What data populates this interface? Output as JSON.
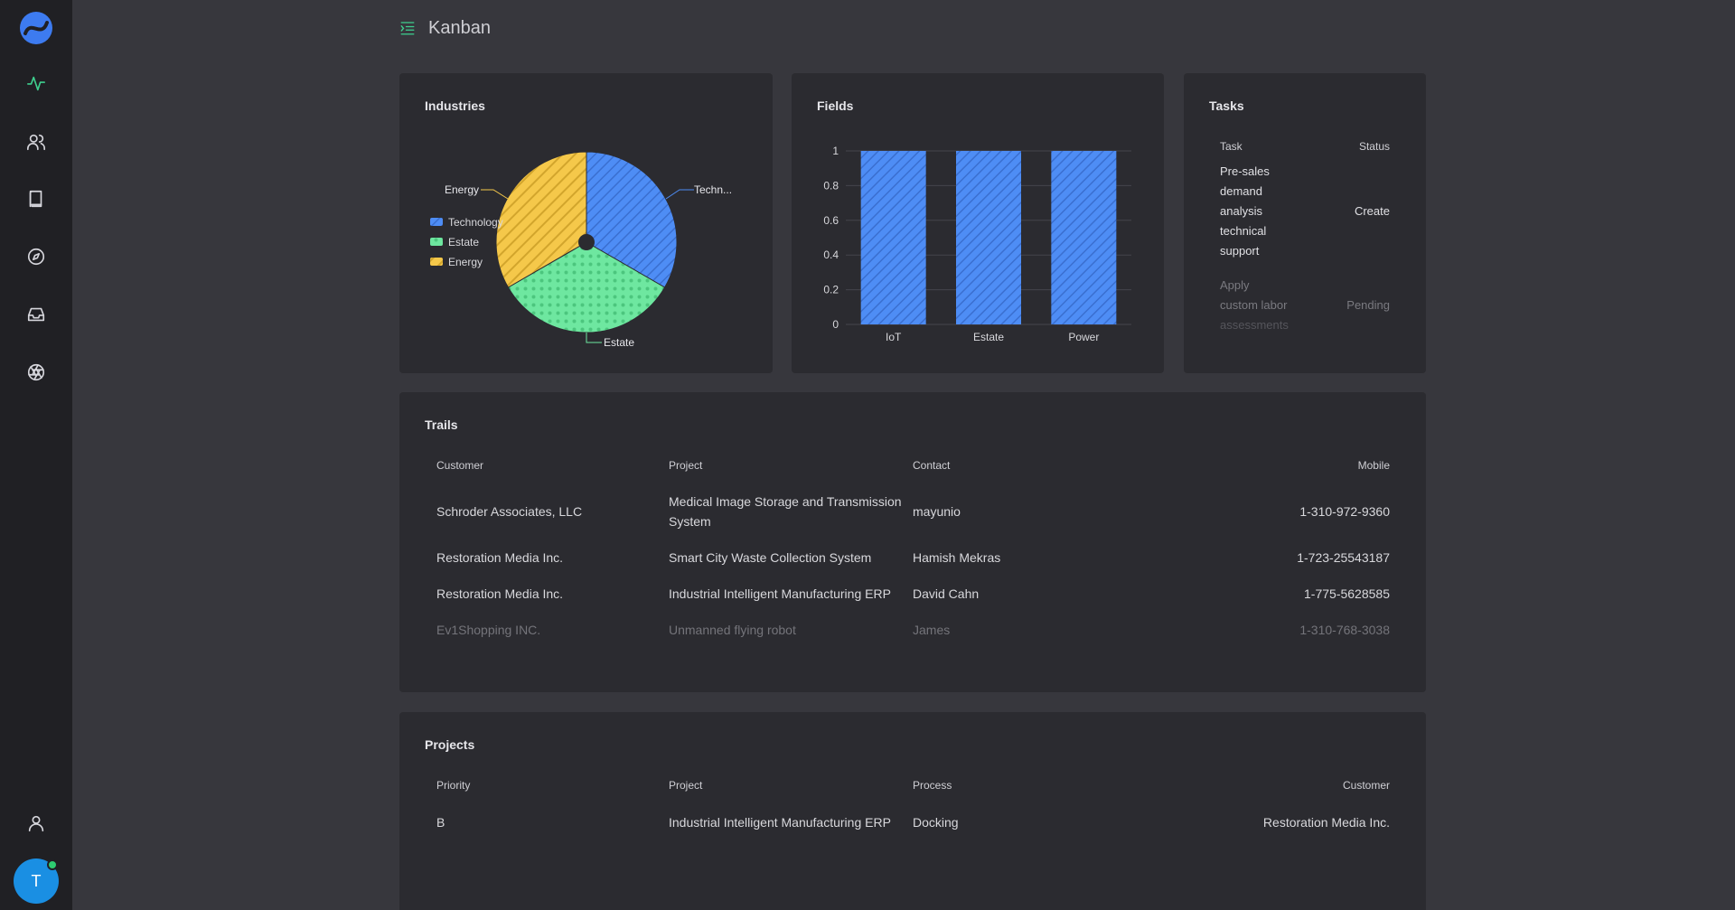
{
  "app": {
    "title": "Kanban",
    "avatar_initial": "T"
  },
  "sidebar": {
    "items": [
      {
        "name": "activity",
        "icon": "activity-icon"
      },
      {
        "name": "users",
        "icon": "users-icon"
      },
      {
        "name": "book",
        "icon": "book-icon"
      },
      {
        "name": "compass",
        "icon": "compass-icon"
      },
      {
        "name": "inbox",
        "icon": "inbox-icon"
      },
      {
        "name": "aperture",
        "icon": "aperture-icon"
      },
      {
        "name": "user",
        "icon": "user-icon"
      }
    ]
  },
  "industries": {
    "title": "Industries",
    "chart_data": {
      "type": "pie",
      "title": "Industries",
      "labels": [
        "Technology",
        "Estate",
        "Energy"
      ],
      "values": [
        1,
        1,
        1
      ],
      "slice_labels": [
        "Techn...",
        "Estate",
        "Energy"
      ],
      "legend": "left",
      "colors": [
        "#4e8df5",
        "#6ee7a0",
        "#f5c84a"
      ]
    }
  },
  "fields": {
    "title": "Fields",
    "chart_data": {
      "type": "bar",
      "title": "Fields",
      "categories": [
        "IoT",
        "Estate",
        "Power"
      ],
      "values": [
        1,
        1,
        1
      ],
      "ylim": [
        0,
        1
      ],
      "yticks": [
        "0",
        "0.2",
        "0.4",
        "0.6",
        "0.8",
        "1"
      ],
      "grid": true,
      "color": "#4e8df5"
    }
  },
  "tasks": {
    "title": "Tasks",
    "headers": {
      "task": "Task",
      "status": "Status"
    },
    "rows": [
      {
        "task_lines": [
          "Pre-sales",
          "demand",
          "analysis",
          "technical",
          "support"
        ],
        "status": "Create"
      },
      {
        "task_lines": [
          "Apply",
          "custom labor",
          "assessments"
        ],
        "status": "Pending"
      }
    ]
  },
  "trails": {
    "title": "Trails",
    "headers": {
      "customer": "Customer",
      "project": "Project",
      "contact": "Contact",
      "mobile": "Mobile"
    },
    "rows": [
      {
        "customer": "Schroder Associates, LLC",
        "project_lines": [
          "Medical Image Storage and Transmission",
          "System"
        ],
        "contact": "mayunio",
        "mobile": "1-310-972-9360"
      },
      {
        "customer": "Restoration Media Inc.",
        "project_lines": [
          "Smart City Waste Collection System"
        ],
        "contact": "Hamish Mekras",
        "mobile": "1-723-25543187"
      },
      {
        "customer": "Restoration Media Inc.",
        "project_lines": [
          "Industrial Intelligent Manufacturing ERP"
        ],
        "contact": "David Cahn",
        "mobile": "1-775-5628585"
      },
      {
        "customer": "Ev1Shopping INC.",
        "project_lines": [
          "Unmanned flying robot"
        ],
        "contact": "James",
        "mobile": "1-310-768-3038"
      }
    ]
  },
  "projects": {
    "title": "Projects",
    "headers": {
      "priority": "Priority",
      "project": "Project",
      "process": "Process",
      "customer": "Customer"
    },
    "rows": [
      {
        "priority": "B",
        "project": "Industrial Intelligent Manufacturing ERP",
        "process": "Docking",
        "customer": "Restoration Media Inc."
      }
    ]
  }
}
